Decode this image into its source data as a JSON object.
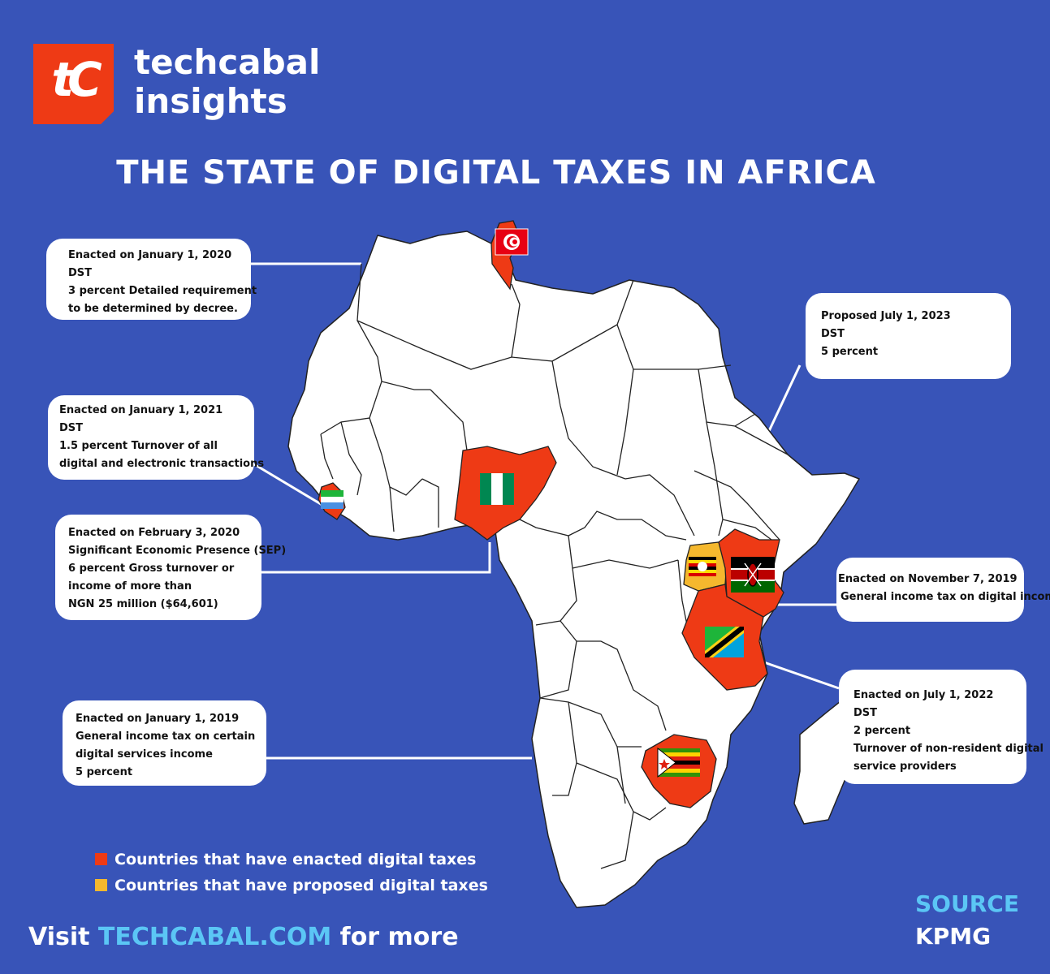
{
  "brand": {
    "logo_mark": "tC",
    "name_line1": "techcabal",
    "name_line2": "insights"
  },
  "title": "THE STATE OF DIGITAL TAXES IN AFRICA",
  "colors": {
    "background": "#3854b8",
    "enacted": "#ee3a15",
    "proposed": "#f5b82e",
    "land": "#ffffff",
    "accent_text": "#5bc6f5"
  },
  "callouts": {
    "tunisia": [
      "Enacted on January 1, 2020",
      "DST",
      "3 percent Detailed requirement",
      "to be determined by decree."
    ],
    "sierra_leone": [
      "Enacted on January 1, 2021",
      "DST",
      "1.5 percent Turnover of all",
      "digital and electronic transactions"
    ],
    "nigeria": [
      "Enacted on February 3, 2020",
      "Significant Economic Presence (SEP)",
      "6 percent Gross turnover or",
      "income of more than",
      "NGN 25 million ($64,601)"
    ],
    "zimbabwe": [
      "Enacted on January 1, 2019",
      "General income tax on certain",
      "digital services income",
      "5 percent"
    ],
    "uganda": [
      "Proposed July 1, 2023",
      "DST",
      "5 percent"
    ],
    "kenya": [
      "Enacted on November 7, 2019",
      "General income tax on digital income"
    ],
    "tanzania": [
      "Enacted on July 1, 2022",
      "DST",
      "2 percent",
      "Turnover of non-resident digital",
      "service providers"
    ]
  },
  "legend": {
    "enacted": "Countries that have enacted digital taxes",
    "proposed": "Countries that have proposed digital taxes"
  },
  "source": {
    "label": "SOURCE",
    "value": "KPMG"
  },
  "footer": {
    "prefix": "Visit ",
    "link": "TECHCABAL.COM",
    "suffix": " for more"
  }
}
